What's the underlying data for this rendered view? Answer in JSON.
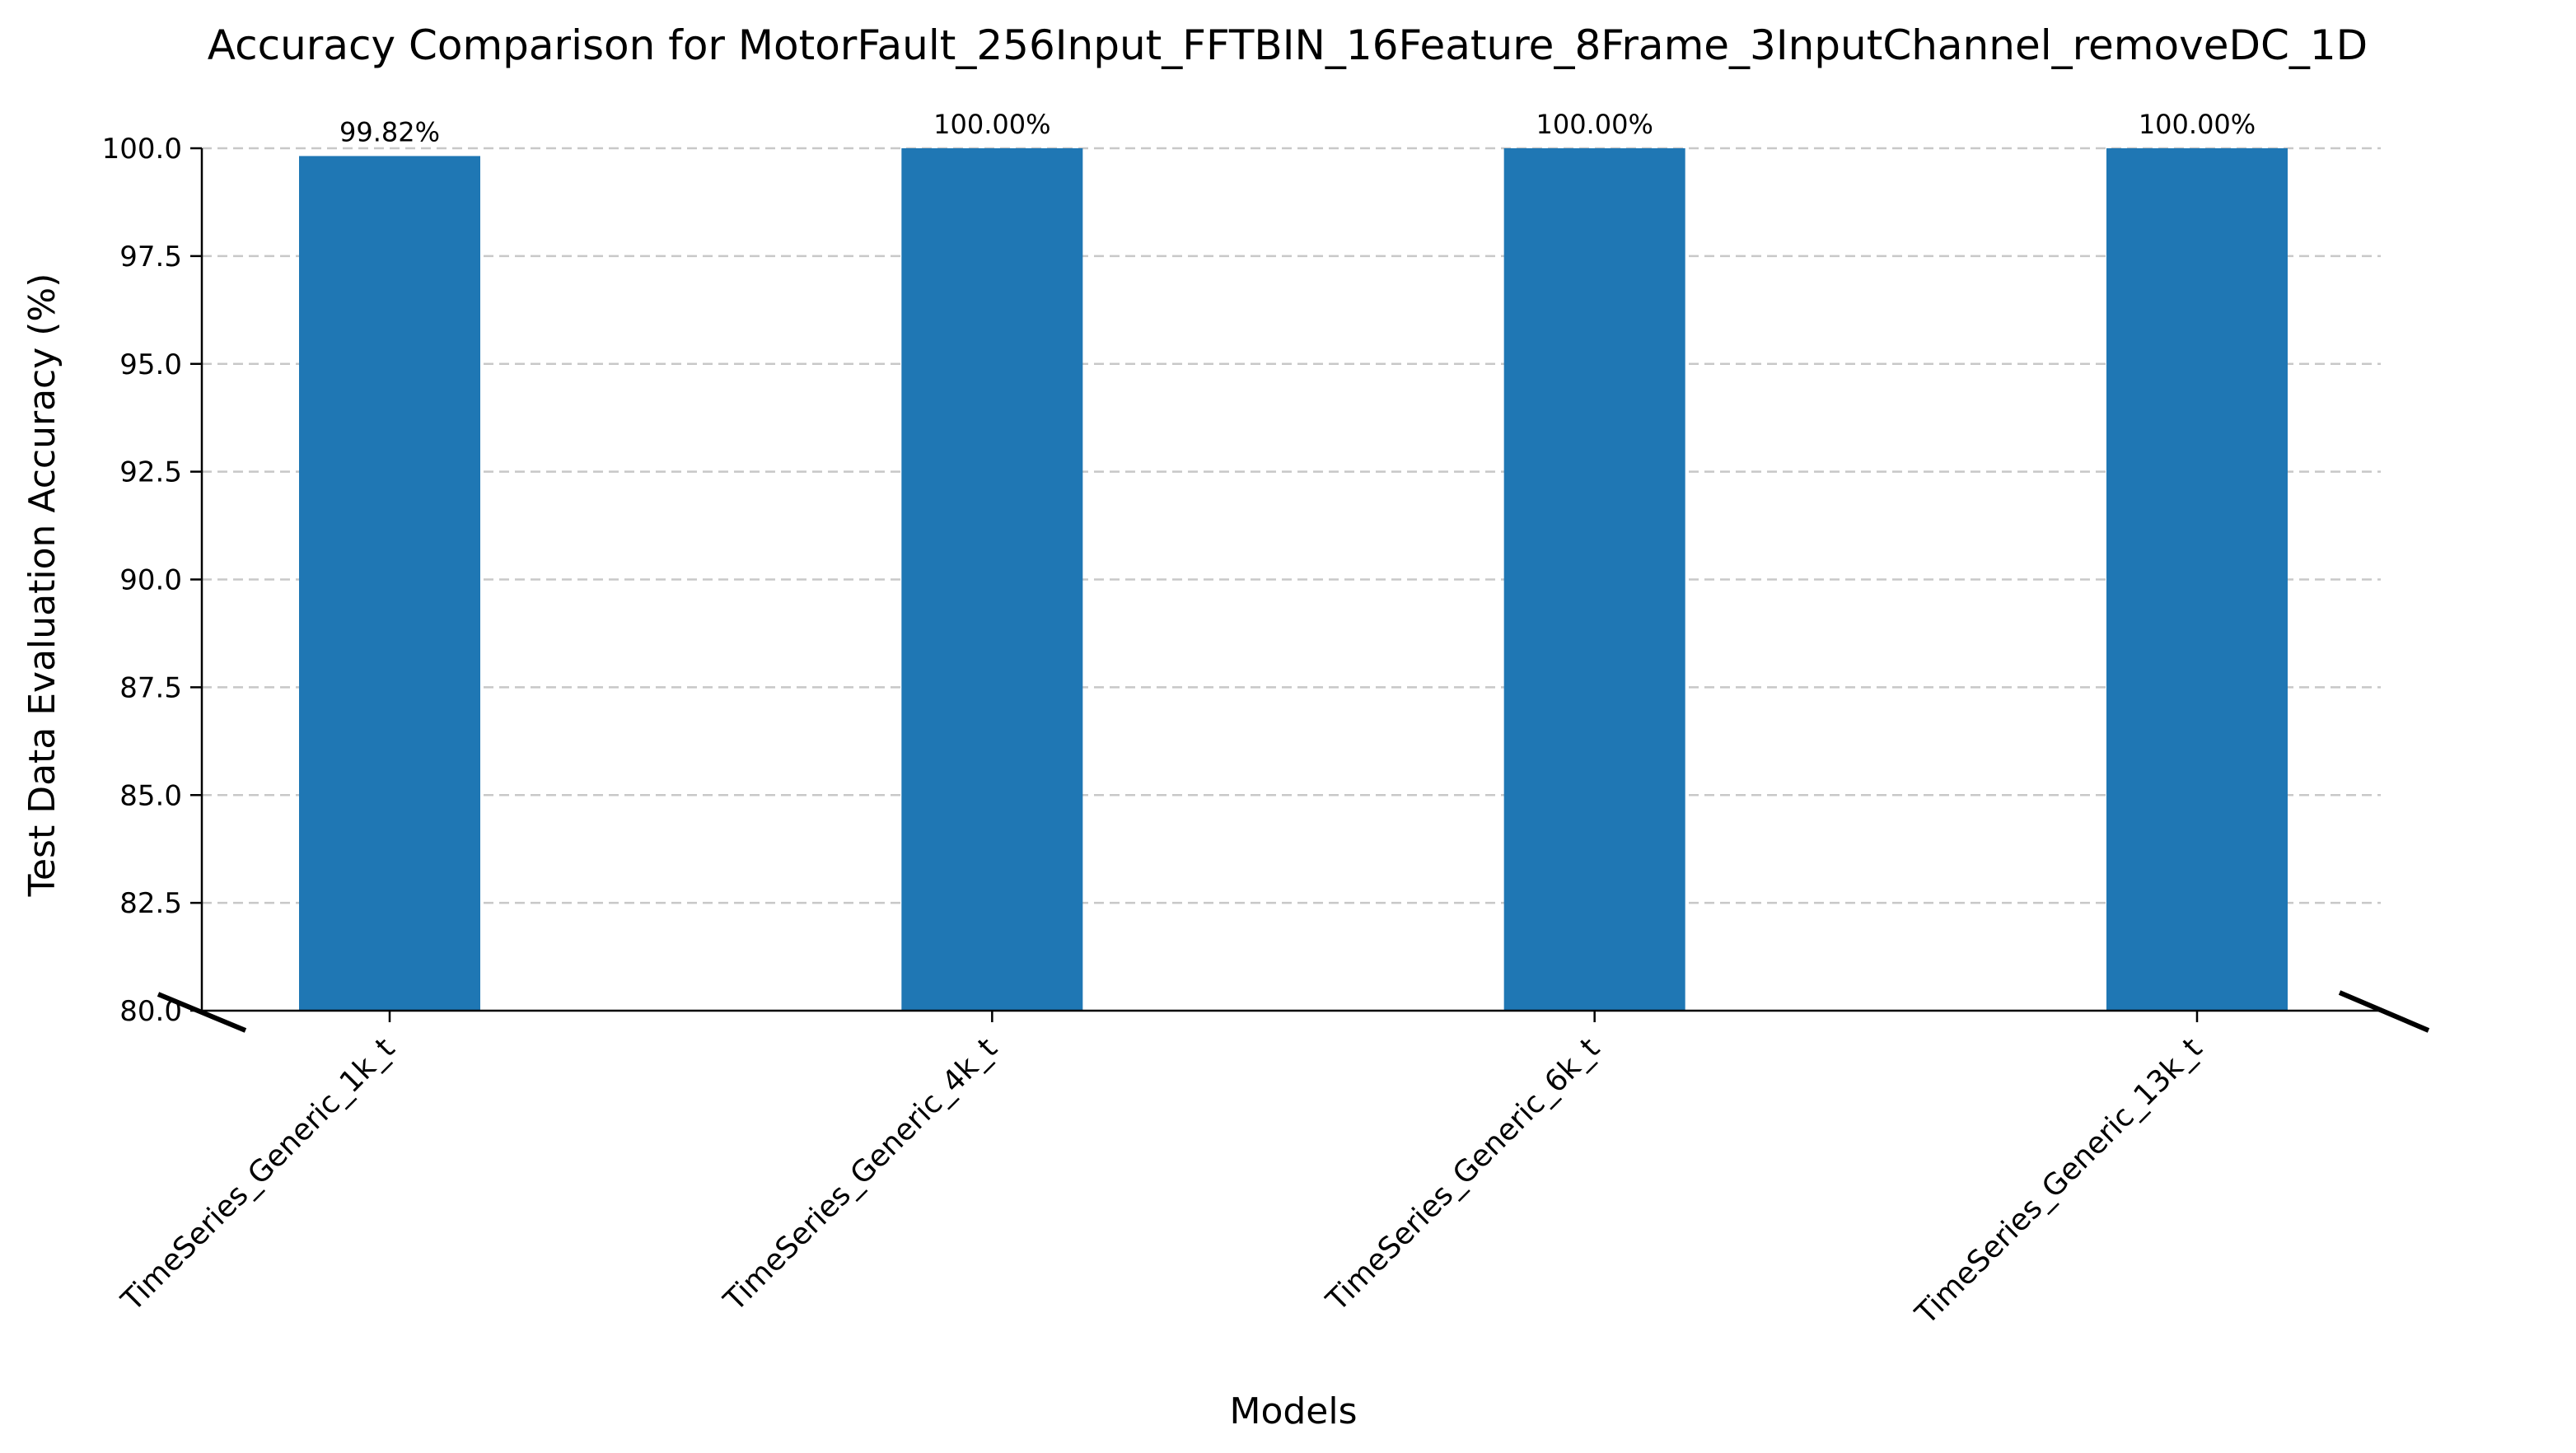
{
  "chart_data": {
    "type": "bar",
    "title": "Accuracy Comparison for MotorFault_256Input_FFTBIN_16Feature_8Frame_3InputChannel_removeDC_1D",
    "xlabel": "Models",
    "ylabel": "Test Data Evaluation Accuracy (%)",
    "categories": [
      "TimeSeries_Generic_1k_t",
      "TimeSeries_Generic_4k_t",
      "TimeSeries_Generic_6k_t",
      "TimeSeries_Generic_13k_t"
    ],
    "values": [
      99.82,
      100.0,
      100.0,
      100.0
    ],
    "value_labels": [
      "99.82%",
      "100.00%",
      "100.00%",
      "100.00%"
    ],
    "ylim": [
      80,
      100
    ],
    "yticks": [
      80.0,
      82.5,
      85.0,
      87.5,
      90.0,
      92.5,
      95.0,
      97.5,
      100.0
    ],
    "ytick_labels": [
      "80.0",
      "82.5",
      "85.0",
      "87.5",
      "90.0",
      "92.5",
      "95.0",
      "97.5",
      "100.0"
    ],
    "grid": "y-dashed",
    "axis_break": true,
    "bar_color": "#1f77b4",
    "grid_color": "#c8c8c8"
  }
}
